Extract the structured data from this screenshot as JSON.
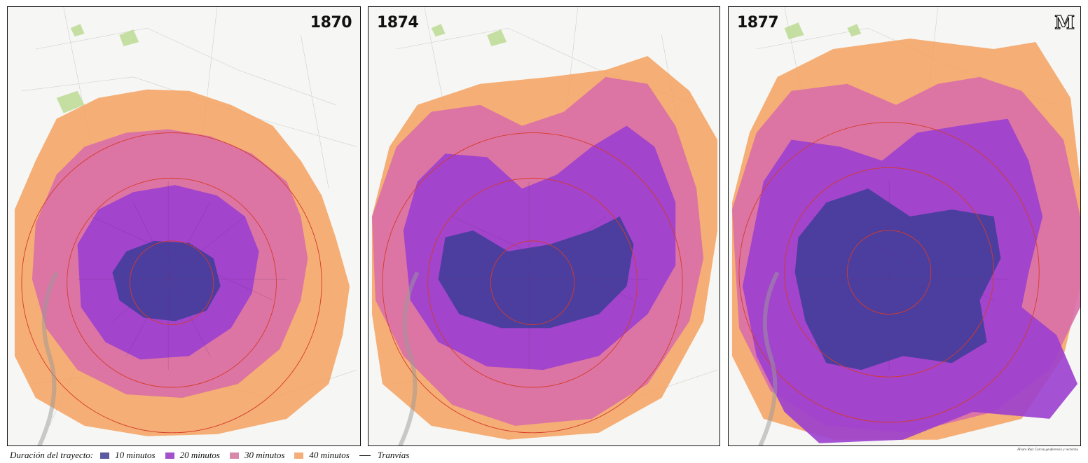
{
  "panels": [
    {
      "year": "1870",
      "year_position": "top-right"
    },
    {
      "year": "1874",
      "year_position": "top-left"
    },
    {
      "year": "1877",
      "year_position": "top-left",
      "logo": "M"
    }
  ],
  "credit": "Álvaro Ruiz Carceu geoferencio y vectoriza",
  "legend": {
    "lead": "Duración del trayecto:",
    "items": [
      {
        "label": "10 minutos",
        "color": "#5a5aa0"
      },
      {
        "label": "20 minutos",
        "color": "#a352cc"
      },
      {
        "label": "30 minutos",
        "color": "#d789ac"
      },
      {
        "label": "40 minutos",
        "color": "#f3ae79"
      }
    ],
    "line_label": "Tranvías"
  },
  "colors": {
    "min10": "#3d3d96",
    "min20": "#9b3fd0",
    "min30": "#d96fa8",
    "min40": "#f5a15e",
    "rings": "#d53a2a",
    "background": "#f6f6f4"
  }
}
